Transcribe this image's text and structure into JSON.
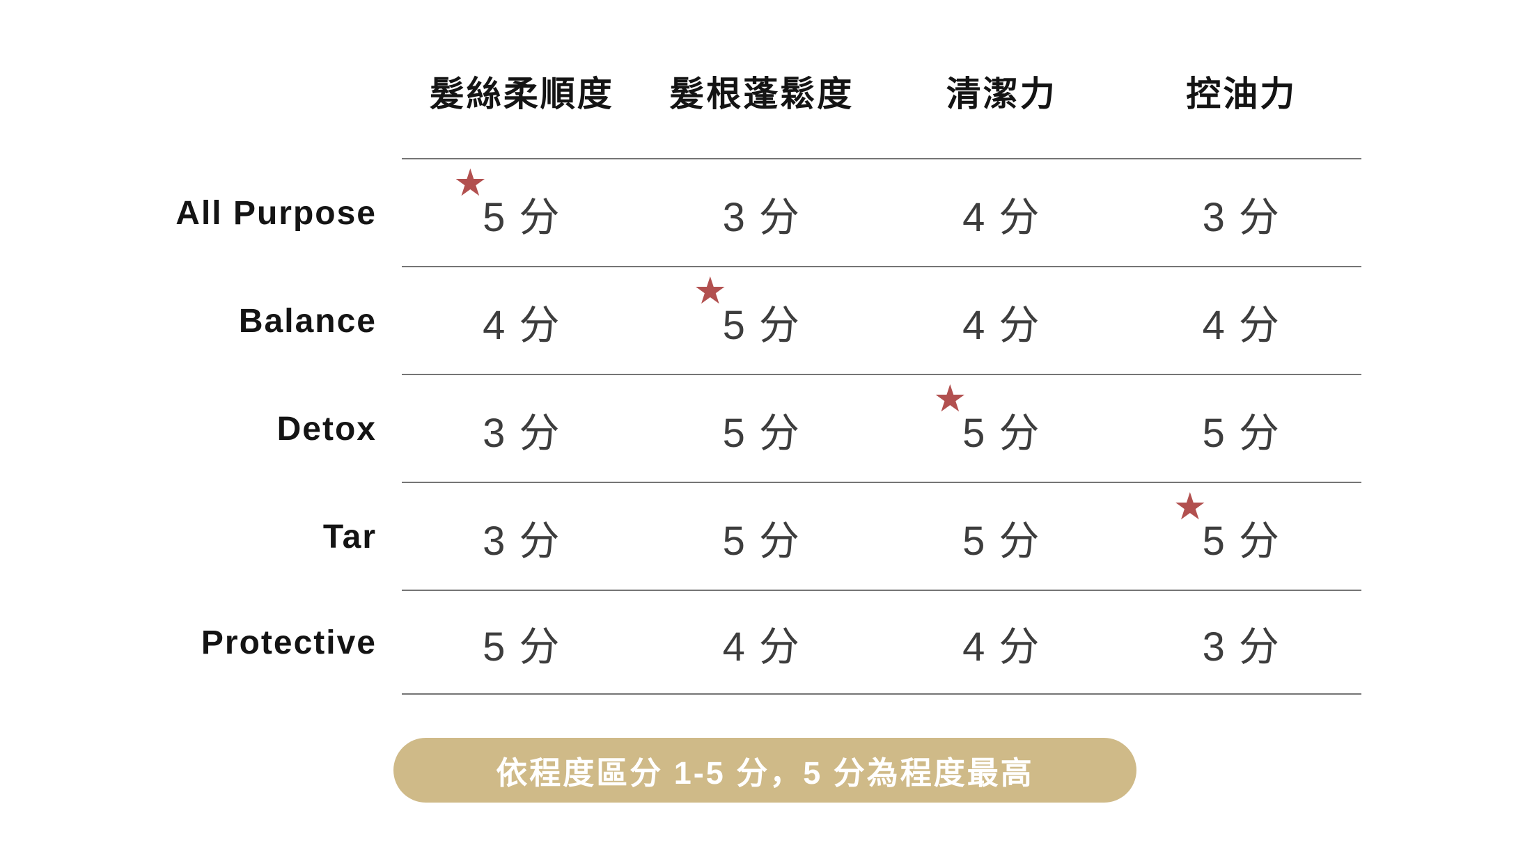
{
  "chart_data": {
    "type": "table",
    "columns": [
      "髮絲柔順度",
      "髮根蓬鬆度",
      "清潔力",
      "控油力"
    ],
    "rows": [
      "All Purpose",
      "Balance",
      "Detox",
      "Tar",
      "Protective"
    ],
    "values": [
      [
        5,
        3,
        4,
        3
      ],
      [
        4,
        5,
        4,
        4
      ],
      [
        3,
        5,
        5,
        5
      ],
      [
        3,
        5,
        5,
        5
      ],
      [
        5,
        4,
        4,
        3
      ]
    ],
    "unit": "分",
    "starred_cells": [
      {
        "row": "All Purpose",
        "column": "髮絲柔順度"
      },
      {
        "row": "Balance",
        "column": "髮根蓬鬆度"
      },
      {
        "row": "Detox",
        "column": "清潔力"
      },
      {
        "row": "Tar",
        "column": "控油力"
      }
    ],
    "note": "依程度區分 1-5 分，5 分為程度最高",
    "legend_position": "bottom",
    "grid": "horizontal-lines-only"
  },
  "table": {
    "columns": [
      "髮絲柔順度",
      "髮根蓬鬆度",
      "清潔力",
      "控油力"
    ],
    "rows": [
      {
        "label": "All Purpose",
        "scores": [
          "5 分",
          "3 分",
          "4 分",
          "3 分"
        ]
      },
      {
        "label": "Balance",
        "scores": [
          "4 分",
          "5 分",
          "4 分",
          "4 分"
        ]
      },
      {
        "label": "Detox",
        "scores": [
          "3 分",
          "5 分",
          "5 分",
          "5 分"
        ]
      },
      {
        "label": "Tar",
        "scores": [
          "3 分",
          "5 分",
          "5 分",
          "5 分"
        ]
      },
      {
        "label": "Protective",
        "scores": [
          "5 分",
          "4 分",
          "4 分",
          "3 分"
        ]
      }
    ]
  },
  "footnote": {
    "text": "依程度區分 1-5 分，5 分為程度最高"
  },
  "icons": {
    "star": "★"
  },
  "colors": {
    "star": "#b2504f",
    "badge_background": "#cfba88",
    "badge_text": "#ffffff",
    "row_line": "#757575",
    "score_text": "#3d3d3d",
    "label_text": "#141414",
    "page_background": "#ffffff"
  }
}
